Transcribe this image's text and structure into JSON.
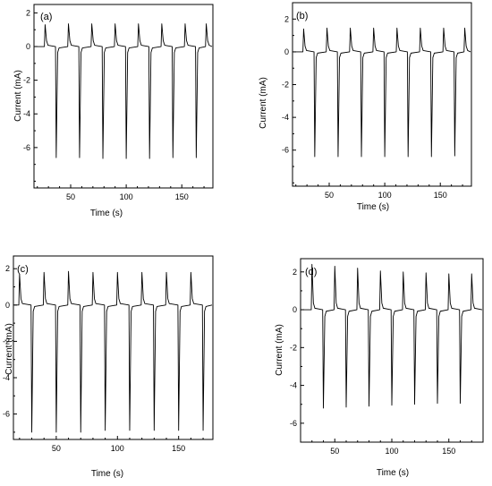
{
  "chart_data": [
    {
      "type": "line",
      "panel_label": "(a)",
      "xlabel": "Time (s)",
      "ylabel": "Current (mA)",
      "xlim": [
        17,
        178
      ],
      "ylim": [
        -8.4,
        2.5
      ],
      "xticks": [
        50,
        100,
        150
      ],
      "yticks": [
        2,
        0,
        -2,
        -4,
        -6
      ],
      "grid": false,
      "series": [
        {
          "baseline": 0,
          "pulses": [
            {
              "t": 27,
              "up": 1.3,
              "down": -6.6
            },
            {
              "t": 48,
              "up": 1.35,
              "down": -6.6
            },
            {
              "t": 69,
              "up": 1.35,
              "down": -6.65
            },
            {
              "t": 90,
              "up": 1.35,
              "down": -6.65
            },
            {
              "t": 111,
              "up": 1.35,
              "down": -6.65
            },
            {
              "t": 132,
              "up": 1.35,
              "down": -6.6
            },
            {
              "t": 153,
              "up": 1.35,
              "down": -6.6
            },
            {
              "t": 172,
              "up": 1.35,
              "down": null
            }
          ]
        }
      ]
    },
    {
      "type": "line",
      "panel_label": "(b)",
      "xlabel": "Time (s)",
      "ylabel": "Current (mA)",
      "xlim": [
        17,
        178
      ],
      "ylim": [
        -8.2,
        3.0
      ],
      "xticks": [
        50,
        100,
        150
      ],
      "yticks": [
        2,
        0,
        -2,
        -4,
        -6
      ],
      "grid": false,
      "series": [
        {
          "baseline": 0,
          "pulses": [
            {
              "t": 27,
              "up": 1.4,
              "down": -6.4
            },
            {
              "t": 48,
              "up": 1.45,
              "down": -6.4
            },
            {
              "t": 69,
              "up": 1.45,
              "down": -6.4
            },
            {
              "t": 90,
              "up": 1.45,
              "down": -6.4
            },
            {
              "t": 111,
              "up": 1.45,
              "down": -6.4
            },
            {
              "t": 132,
              "up": 1.45,
              "down": -6.4
            },
            {
              "t": 153,
              "up": 1.45,
              "down": -6.35
            },
            {
              "t": 172,
              "up": 1.45,
              "down": null
            }
          ]
        }
      ]
    },
    {
      "type": "line",
      "panel_label": "(c)",
      "xlabel": "Time (s)",
      "ylabel": "Current (mA)",
      "xlim": [
        15,
        178
      ],
      "ylim": [
        -7.4,
        2.7
      ],
      "xticks": [
        50,
        100,
        150
      ],
      "yticks": [
        2,
        0,
        -2,
        -4,
        -6
      ],
      "grid": false,
      "series": [
        {
          "baseline": 0,
          "pulses": [
            {
              "t": 20,
              "up": 1.7,
              "down": -7.0
            },
            {
              "t": 40,
              "up": 1.8,
              "down": -7.0
            },
            {
              "t": 60,
              "up": 1.85,
              "down": -7.0
            },
            {
              "t": 80,
              "up": 1.8,
              "down": -6.9
            },
            {
              "t": 100,
              "up": 1.8,
              "down": -6.9
            },
            {
              "t": 120,
              "up": 1.8,
              "down": -6.9
            },
            {
              "t": 140,
              "up": 1.8,
              "down": -6.9
            },
            {
              "t": 160,
              "up": 1.8,
              "down": -6.9
            }
          ]
        }
      ]
    },
    {
      "type": "line",
      "panel_label": "(d)",
      "xlabel": "Time (s)",
      "ylabel": "Current (mA)",
      "xlim": [
        20,
        180
      ],
      "ylim": [
        -7.0,
        2.7
      ],
      "xticks": [
        50,
        100,
        150
      ],
      "yticks": [
        2,
        0,
        -2,
        -4,
        -6
      ],
      "grid": false,
      "series": [
        {
          "baseline": 0,
          "pulses": [
            {
              "t": 30,
              "up": 2.4,
              "down": -5.2
            },
            {
              "t": 50,
              "up": 2.3,
              "down": -5.15
            },
            {
              "t": 70,
              "up": 2.2,
              "down": -5.1
            },
            {
              "t": 90,
              "up": 2.05,
              "down": -5.05
            },
            {
              "t": 110,
              "up": 2.0,
              "down": -5.0
            },
            {
              "t": 130,
              "up": 1.95,
              "down": -4.95
            },
            {
              "t": 150,
              "up": 1.9,
              "down": -4.95
            },
            {
              "t": 170,
              "up": 1.9,
              "down": null
            }
          ]
        }
      ]
    }
  ]
}
